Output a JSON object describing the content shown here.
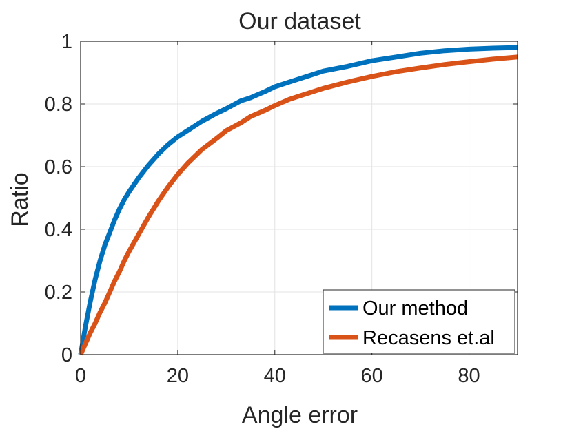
{
  "chart_data": {
    "type": "line",
    "title": "Our dataset",
    "xlabel": "Angle error",
    "ylabel": "Ratio",
    "xlim": [
      0,
      90
    ],
    "ylim": [
      0,
      1
    ],
    "xticks": [
      0,
      20,
      40,
      60,
      80
    ],
    "yticks": [
      0,
      0.2,
      0.4,
      0.6,
      0.8,
      1
    ],
    "xtick_labels": [
      "0",
      "20",
      "40",
      "60",
      "80"
    ],
    "ytick_labels": [
      "0",
      "0.2",
      "0.4",
      "0.6",
      "0.8",
      "1"
    ],
    "grid": true,
    "legend_position": "bottom-right",
    "series": [
      {
        "name": "Our method",
        "color": "#0072BD",
        "x": [
          0,
          1,
          2,
          3,
          4,
          5,
          6,
          7,
          8,
          9,
          10,
          12,
          14,
          16,
          18,
          20,
          22,
          25,
          28,
          30,
          33,
          35,
          38,
          40,
          43,
          45,
          48,
          50,
          55,
          60,
          65,
          70,
          75,
          80,
          85,
          90
        ],
        "y": [
          0,
          0.09,
          0.17,
          0.24,
          0.3,
          0.35,
          0.39,
          0.43,
          0.465,
          0.495,
          0.52,
          0.565,
          0.605,
          0.64,
          0.67,
          0.695,
          0.715,
          0.745,
          0.77,
          0.785,
          0.81,
          0.82,
          0.84,
          0.855,
          0.87,
          0.88,
          0.895,
          0.905,
          0.92,
          0.938,
          0.95,
          0.962,
          0.97,
          0.975,
          0.978,
          0.98
        ]
      },
      {
        "name": "Recasens et.al",
        "color": "#D95319",
        "x": [
          0,
          1,
          2,
          3,
          4,
          5,
          6,
          7,
          8,
          9,
          10,
          12,
          14,
          16,
          18,
          20,
          22,
          25,
          28,
          30,
          33,
          35,
          38,
          40,
          43,
          45,
          48,
          50,
          55,
          60,
          65,
          70,
          75,
          80,
          85,
          90
        ],
        "y": [
          0,
          0.035,
          0.07,
          0.1,
          0.135,
          0.165,
          0.2,
          0.235,
          0.265,
          0.3,
          0.33,
          0.385,
          0.44,
          0.49,
          0.535,
          0.575,
          0.61,
          0.655,
          0.69,
          0.715,
          0.74,
          0.76,
          0.78,
          0.795,
          0.815,
          0.825,
          0.84,
          0.85,
          0.87,
          0.888,
          0.903,
          0.915,
          0.926,
          0.935,
          0.943,
          0.95
        ]
      }
    ]
  }
}
